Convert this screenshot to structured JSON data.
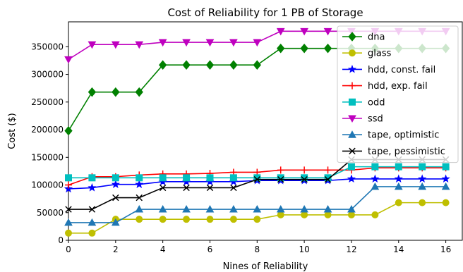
{
  "chart_data": {
    "type": "line",
    "title": "Cost of Reliability for 1 PB of Storage",
    "xlabel": "Nines of Reliability",
    "ylabel": "Cost ($)",
    "xlim": [
      0,
      16.7
    ],
    "ylim": [
      0,
      395000
    ],
    "x_ticks": [
      0,
      2,
      4,
      6,
      8,
      10,
      12,
      14,
      16
    ],
    "y_ticks": [
      0,
      50000,
      100000,
      150000,
      200000,
      250000,
      300000,
      350000
    ],
    "grid": false,
    "legend_position": "top-right",
    "x": [
      0,
      1,
      2,
      3,
      4,
      5,
      6,
      7,
      8,
      9,
      10,
      11,
      12,
      13,
      14,
      15,
      16
    ],
    "series": [
      {
        "name": "dna",
        "color": "#008000",
        "marker": "diamond",
        "values": [
          198000,
          268000,
          268000,
          268000,
          317000,
          317000,
          317000,
          317000,
          317000,
          347000,
          347000,
          347000,
          347000,
          347000,
          347000,
          347000,
          347000
        ]
      },
      {
        "name": "glass",
        "color": "#bfbf00",
        "marker": "circle",
        "values": [
          13000,
          13000,
          38000,
          38000,
          38000,
          38000,
          38000,
          38000,
          38000,
          46000,
          46000,
          46000,
          46000,
          46000,
          68000,
          68000,
          68000
        ]
      },
      {
        "name": "hdd, const. fail",
        "color": "#0000ff",
        "marker": "star",
        "values": [
          93000,
          95000,
          101000,
          101000,
          106000,
          106000,
          106000,
          106000,
          108000,
          108000,
          108000,
          108000,
          111000,
          111000,
          111000,
          111000,
          111000
        ]
      },
      {
        "name": "hdd, exp. fail",
        "color": "#ff0000",
        "marker": "plus",
        "values": [
          100000,
          115000,
          115000,
          118000,
          120000,
          120000,
          121000,
          123000,
          123000,
          127000,
          127000,
          127000,
          127000,
          131000,
          131000,
          131000,
          131000
        ]
      },
      {
        "name": "odd",
        "color": "#00bfbf",
        "marker": "square",
        "values": [
          113000,
          113000,
          113000,
          113000,
          113000,
          113000,
          113000,
          113000,
          113000,
          113000,
          113000,
          113000,
          133000,
          133000,
          133000,
          133000,
          133000
        ]
      },
      {
        "name": "ssd",
        "color": "#bf00bf",
        "marker": "triangle-down",
        "values": [
          327000,
          354000,
          354000,
          354000,
          358000,
          358000,
          358000,
          358000,
          358000,
          378000,
          378000,
          378000,
          378000,
          378000,
          378000,
          378000,
          378000
        ]
      },
      {
        "name": "tape, optimistic",
        "color": "#1f77b4",
        "marker": "triangle-up",
        "values": [
          32000,
          32000,
          32000,
          56000,
          56000,
          56000,
          56000,
          56000,
          56000,
          56000,
          56000,
          56000,
          56000,
          97000,
          97000,
          97000,
          97000
        ]
      },
      {
        "name": "tape, pessimistic",
        "color": "#000000",
        "marker": "x",
        "values": [
          56000,
          56000,
          77000,
          77000,
          95000,
          95000,
          95000,
          95000,
          110000,
          110000,
          110000,
          110000,
          146000,
          146000,
          146000,
          146000,
          146000
        ]
      }
    ]
  }
}
